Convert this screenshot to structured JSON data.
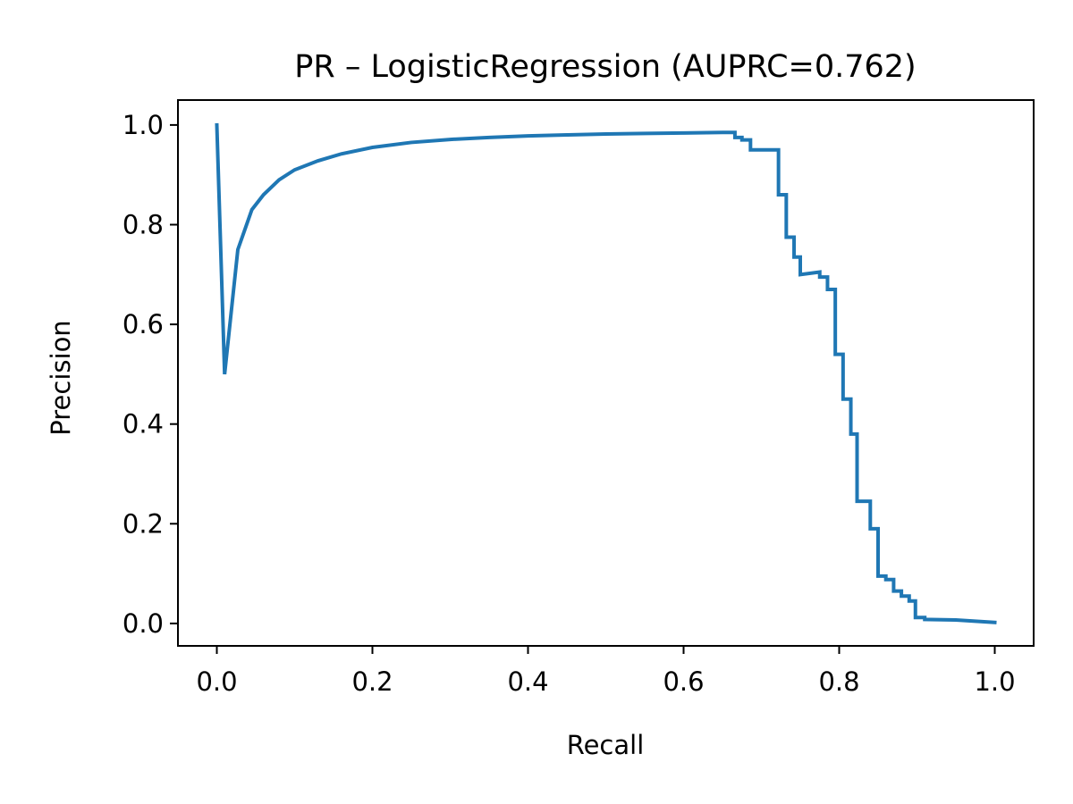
{
  "chart_data": {
    "type": "line",
    "title": "PR – LogisticRegression (AUPRC=0.762)",
    "xlabel": "Recall",
    "ylabel": "Precision",
    "xlim": [
      -0.05,
      1.05
    ],
    "ylim": [
      -0.045,
      1.05
    ],
    "grid": false,
    "legend": "none",
    "xticks": [
      0.0,
      0.2,
      0.4,
      0.6,
      0.8,
      1.0
    ],
    "xtick_labels": [
      "0.0",
      "0.2",
      "0.4",
      "0.6",
      "0.8",
      "1.0"
    ],
    "yticks": [
      0.0,
      0.2,
      0.4,
      0.6,
      0.8,
      1.0
    ],
    "ytick_labels": [
      "0.0",
      "0.2",
      "0.4",
      "0.6",
      "0.8",
      "1.0"
    ],
    "series": [
      {
        "color": "#1f77b4",
        "x": [
          0.0,
          0.01,
          0.027,
          0.045,
          0.06,
          0.08,
          0.1,
          0.13,
          0.16,
          0.2,
          0.25,
          0.3,
          0.35,
          0.4,
          0.45,
          0.5,
          0.55,
          0.6,
          0.65,
          0.666,
          0.666,
          0.675,
          0.675,
          0.686,
          0.686,
          0.722,
          0.722,
          0.732,
          0.732,
          0.742,
          0.742,
          0.75,
          0.75,
          0.775,
          0.775,
          0.785,
          0.785,
          0.795,
          0.795,
          0.805,
          0.805,
          0.815,
          0.815,
          0.823,
          0.823,
          0.84,
          0.84,
          0.85,
          0.85,
          0.86,
          0.86,
          0.87,
          0.87,
          0.88,
          0.88,
          0.89,
          0.89,
          0.898,
          0.898,
          0.91,
          0.91,
          0.95,
          1.0
        ],
        "y": [
          1.0,
          0.5,
          0.75,
          0.83,
          0.86,
          0.89,
          0.91,
          0.928,
          0.942,
          0.955,
          0.965,
          0.971,
          0.975,
          0.978,
          0.98,
          0.982,
          0.983,
          0.984,
          0.985,
          0.985,
          0.975,
          0.975,
          0.97,
          0.97,
          0.95,
          0.95,
          0.86,
          0.86,
          0.775,
          0.775,
          0.735,
          0.735,
          0.7,
          0.705,
          0.695,
          0.695,
          0.67,
          0.67,
          0.54,
          0.54,
          0.45,
          0.45,
          0.38,
          0.38,
          0.245,
          0.245,
          0.19,
          0.19,
          0.095,
          0.095,
          0.088,
          0.088,
          0.065,
          0.065,
          0.055,
          0.055,
          0.045,
          0.045,
          0.012,
          0.012,
          0.008,
          0.007,
          0.002
        ]
      }
    ]
  }
}
